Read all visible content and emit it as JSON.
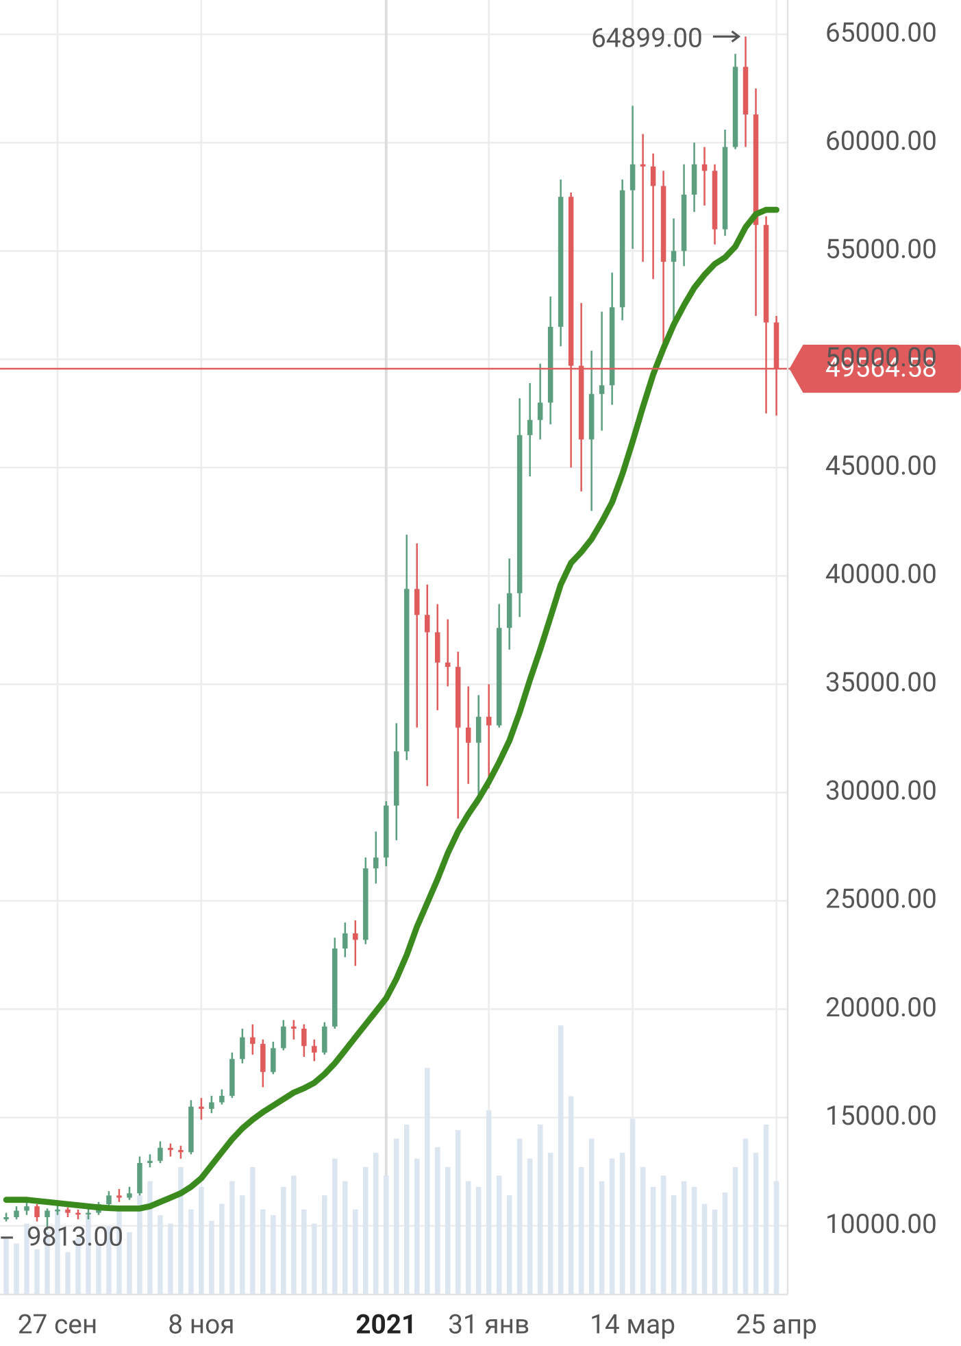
{
  "chart_data": {
    "type": "candlestick",
    "categories": [
      null,
      null,
      null,
      null,
      null,
      "27 сен",
      null,
      null,
      null,
      null,
      null,
      null,
      null,
      null,
      null,
      null,
      null,
      null,
      null,
      "8 ноя",
      null,
      null,
      null,
      null,
      null,
      null,
      null,
      null,
      null,
      null,
      null,
      null,
      null,
      null,
      null,
      null,
      null,
      "2021",
      null,
      null,
      null,
      null,
      null,
      null,
      null,
      null,
      null,
      "31 янв",
      null,
      null,
      null,
      null,
      null,
      null,
      null,
      null,
      null,
      null,
      null,
      null,
      null,
      "14 мар",
      null,
      null,
      null,
      null,
      null,
      null,
      null,
      null,
      null,
      null,
      null,
      null,
      null,
      "25 апр"
    ],
    "open": [
      10300,
      10400,
      10700,
      10900,
      10400,
      10700,
      10750,
      10600,
      10550,
      10600,
      11000,
      11400,
      11300,
      11500,
      12900,
      13000,
      13600,
      13500,
      13400,
      15500,
      15400,
      15700,
      16000,
      17700,
      18700,
      18400,
      17100,
      18200,
      19200,
      19100,
      18300,
      18000,
      19200,
      22800,
      23500,
      23200,
      26500,
      27000,
      29400,
      31900,
      39400,
      38200,
      37400,
      36000,
      35800,
      33000,
      32300,
      33500,
      33100,
      37600,
      39200,
      46500,
      47200,
      48000,
      51500,
      57500,
      49700,
      46300,
      48400,
      48800,
      52400,
      57800,
      59000,
      58900,
      58000,
      54500,
      55000,
      57600,
      59000,
      58700,
      56000,
      59800,
      63500,
      61300,
      56200,
      51700
    ],
    "high": [
      10600,
      10900,
      11100,
      11000,
      10800,
      10950,
      10850,
      10750,
      10800,
      11100,
      11600,
      11700,
      11800,
      13200,
      13300,
      13900,
      13800,
      13700,
      15800,
      15900,
      16000,
      16300,
      18000,
      19100,
      19300,
      18600,
      18500,
      19500,
      19500,
      19300,
      18600,
      19400,
      23300,
      24000,
      24100,
      27000,
      28200,
      29600,
      33200,
      41900,
      41500,
      39600,
      38700,
      38000,
      36500,
      34900,
      34500,
      35000,
      38700,
      40800,
      48200,
      48900,
      49800,
      52900,
      58300,
      57700,
      52600,
      50400,
      52200,
      54000,
      58300,
      61700,
      60400,
      59500,
      58700,
      56500,
      59000,
      60000,
      59800,
      59000,
      60600,
      64100,
      64899,
      62500,
      56600,
      52000
    ],
    "low": [
      10200,
      10300,
      10500,
      10200,
      9813,
      10500,
      10400,
      10300,
      10300,
      10500,
      10900,
      11100,
      11200,
      11400,
      12700,
      12900,
      13200,
      13100,
      13300,
      14900,
      15200,
      15600,
      15900,
      17500,
      17900,
      16400,
      17000,
      18100,
      18600,
      17800,
      17600,
      17900,
      19100,
      22400,
      22000,
      23000,
      25800,
      26600,
      27800,
      31500,
      33000,
      30300,
      33800,
      34900,
      28800,
      30400,
      29700,
      30200,
      33000,
      36600,
      38100,
      44600,
      46300,
      47000,
      50600,
      45000,
      43900,
      43000,
      46700,
      47900,
      51800,
      55100,
      54500,
      53700,
      50500,
      51500,
      54300,
      56800,
      57100,
      55300,
      55700,
      59700,
      59800,
      52000,
      47500,
      47400
    ],
    "close": [
      10400,
      10700,
      10900,
      10400,
      10700,
      10750,
      10600,
      10550,
      10600,
      11000,
      11400,
      11300,
      11500,
      12900,
      13000,
      13600,
      13500,
      13400,
      15500,
      15400,
      15700,
      16000,
      17700,
      18700,
      18400,
      17100,
      18200,
      19200,
      19100,
      18300,
      18000,
      19200,
      22800,
      23500,
      23200,
      26500,
      27000,
      29400,
      31900,
      39400,
      38200,
      37400,
      36000,
      35800,
      33000,
      32300,
      33500,
      33100,
      37600,
      39200,
      46500,
      47200,
      48000,
      51500,
      57500,
      49700,
      46300,
      48400,
      48800,
      52400,
      57800,
      59000,
      58900,
      58000,
      54500,
      55000,
      57600,
      59000,
      58700,
      56000,
      59800,
      63500,
      61300,
      56200,
      51700,
      49564.58
    ],
    "up_color": "#5c9f7f",
    "down_color": "#e05b5b",
    "moving_average": {
      "color": "#3a8a1e",
      "values": [
        11200,
        11200,
        11200,
        11150,
        11100,
        11050,
        11000,
        10950,
        10900,
        10850,
        10820,
        10800,
        10800,
        10800,
        10900,
        11100,
        11300,
        11500,
        11800,
        12200,
        12800,
        13400,
        14000,
        14500,
        14900,
        15250,
        15550,
        15850,
        16150,
        16350,
        16600,
        17000,
        17500,
        18100,
        18700,
        19300,
        19900,
        20500,
        21400,
        22500,
        23800,
        24900,
        26000,
        27200,
        28200,
        29000,
        29700,
        30500,
        31400,
        32400,
        33700,
        35200,
        36600,
        38100,
        39600,
        40600,
        41100,
        41700,
        42500,
        43400,
        44700,
        46200,
        47800,
        49300,
        50500,
        51600,
        52500,
        53300,
        53900,
        54400,
        54700,
        55200,
        56100,
        56700,
        56900,
        56900
      ]
    },
    "volume": {
      "color": "#dce6f0",
      "ylim": [
        0,
        100
      ],
      "values": [
        20,
        18,
        25,
        16,
        22,
        30,
        15,
        20,
        28,
        18,
        24,
        30,
        22,
        35,
        40,
        28,
        25,
        45,
        30,
        38,
        26,
        32,
        40,
        35,
        45,
        30,
        28,
        38,
        42,
        30,
        25,
        35,
        48,
        40,
        30,
        45,
        50,
        42,
        55,
        60,
        48,
        80,
        52,
        45,
        58,
        40,
        38,
        65,
        42,
        35,
        55,
        48,
        60,
        50,
        95,
        70,
        45,
        55,
        40,
        48,
        50,
        62,
        45,
        38,
        42,
        35,
        40,
        38,
        32,
        30,
        36,
        45,
        55,
        50,
        60,
        40
      ]
    },
    "ylim": [
      6830,
      66585
    ],
    "yticks": [
      {
        "value": 10000,
        "label": "10000.00"
      },
      {
        "value": 15000,
        "label": "15000.00"
      },
      {
        "value": 20000,
        "label": "20000.00"
      },
      {
        "value": 25000,
        "label": "25000.00"
      },
      {
        "value": 30000,
        "label": "30000.00"
      },
      {
        "value": 35000,
        "label": "35000.00"
      },
      {
        "value": 40000,
        "label": "40000.00"
      },
      {
        "value": 45000,
        "label": "45000.00"
      },
      {
        "value": 50000,
        "label": "50000.00"
      },
      {
        "value": 55000,
        "label": "55000.00"
      },
      {
        "value": 60000,
        "label": "60000.00"
      },
      {
        "value": 65000,
        "label": "65000.00"
      }
    ],
    "grid": true,
    "last_price": 49564.58,
    "last_price_color": "#e05b5b",
    "max_label": {
      "value": 64899,
      "label": "64899.00"
    },
    "min_label": {
      "value": 9813,
      "label": "9813.00"
    }
  }
}
